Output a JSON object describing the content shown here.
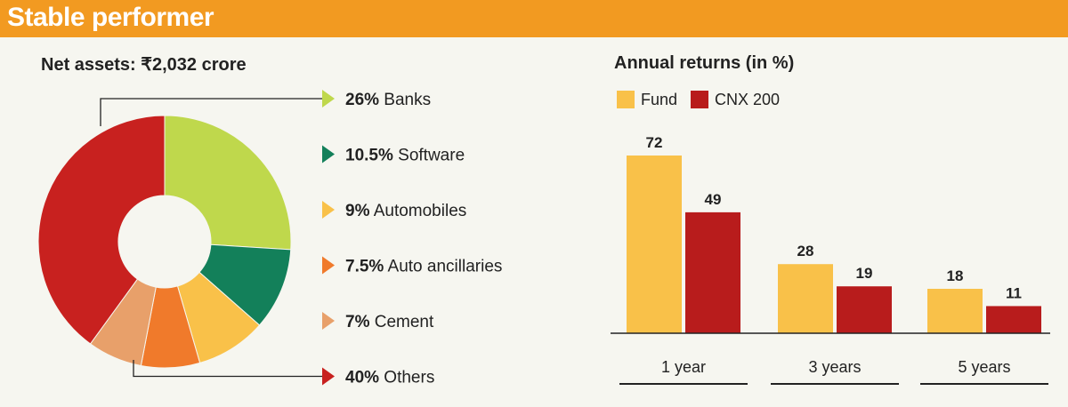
{
  "header": {
    "title": "Stable performer"
  },
  "colors": {
    "header_bg": "#f29a21",
    "banks": "#bfd84c",
    "software": "#13805a",
    "automobiles": "#f9c149",
    "auto_ancillaries": "#f07a2b",
    "cement": "#e8a06a",
    "others": "#c8211f",
    "fund": "#f9c149",
    "cnx200": "#b81c1c"
  },
  "chart_data": [
    {
      "type": "pie",
      "title": "Net assets: ₹2,032 crore",
      "slices": [
        {
          "pct_label": "26%",
          "name": "Banks",
          "value": 26,
          "color_key": "banks"
        },
        {
          "pct_label": "10.5%",
          "name": "Software",
          "value": 10.5,
          "color_key": "software"
        },
        {
          "pct_label": "9%",
          "name": "Automobiles",
          "value": 9,
          "color_key": "automobiles"
        },
        {
          "pct_label": "7.5%",
          "name": "Auto ancillaries",
          "value": 7.5,
          "color_key": "auto_ancillaries"
        },
        {
          "pct_label": "7%",
          "name": "Cement",
          "value": 7,
          "color_key": "cement"
        },
        {
          "pct_label": "40%",
          "name": "Others",
          "value": 40,
          "color_key": "others"
        }
      ]
    },
    {
      "type": "bar",
      "title": "Annual returns (in %)",
      "categories": [
        "1 year",
        "3 years",
        "5 years"
      ],
      "series": [
        {
          "name": "Fund",
          "values": [
            72,
            28,
            18
          ],
          "color_key": "fund"
        },
        {
          "name": "CNX 200",
          "values": [
            49,
            19,
            11
          ],
          "color_key": "cnx200"
        }
      ],
      "ylim": [
        0,
        72
      ]
    }
  ]
}
